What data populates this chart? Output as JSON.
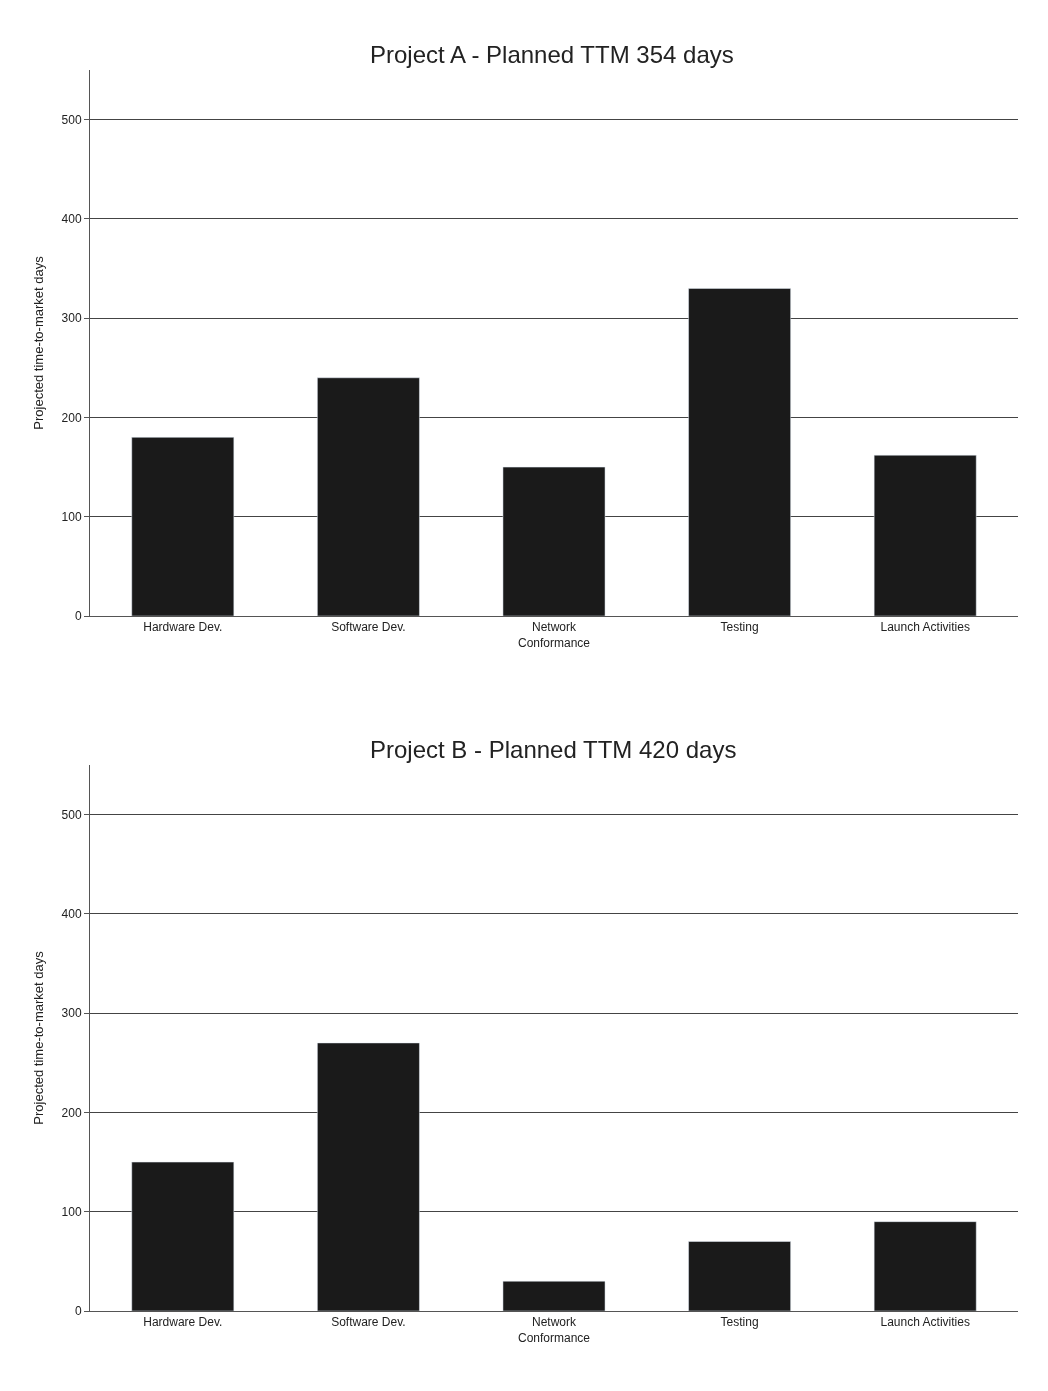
{
  "chart_data": [
    {
      "type": "bar",
      "title": "Project A - Planned TTM 354 days",
      "ylabel": "Projected time-to-market days",
      "categories": [
        "Hardware Dev.",
        "Software Dev.",
        "Network\nConformance",
        "Testing",
        "Launch Activities"
      ],
      "values": [
        180,
        240,
        150,
        330,
        162
      ],
      "color": "#1a1a1a",
      "ylim": [
        0,
        550
      ],
      "yticks": [
        0,
        100,
        200,
        300,
        400,
        500
      ],
      "grid": "y"
    },
    {
      "type": "bar",
      "title": "Project B - Planned TTM 420 days",
      "ylabel": "Projected time-to-market days",
      "categories": [
        "Hardware Dev.",
        "Software Dev.",
        "Network\nConformance",
        "Testing",
        "Launch Activities"
      ],
      "values": [
        150,
        270,
        30,
        70,
        90
      ],
      "color": "#1a1a1a",
      "ylim": [
        0,
        550
      ],
      "yticks": [
        0,
        100,
        200,
        300,
        400,
        500
      ],
      "grid": "y"
    }
  ]
}
